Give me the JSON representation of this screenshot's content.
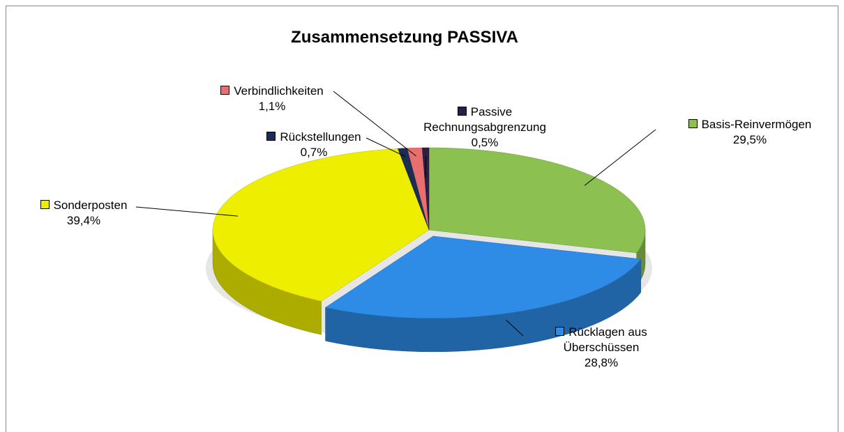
{
  "chart_data": {
    "type": "pie3d",
    "title": "Zusammensetzung PASSIVA",
    "categories": [
      "Basis-Reinvermögen",
      "Rücklagen aus Überschüssen",
      "Sonderposten",
      "Rückstellungen",
      "Verbindlichkeiten",
      "Passive Rechnungsabgrenzung"
    ],
    "values": [
      29.5,
      28.8,
      39.4,
      0.7,
      1.1,
      0.5
    ],
    "value_labels": [
      "29,5%",
      "28,8%",
      "39,4%",
      "0,7%",
      "1,1%",
      "0,5%"
    ],
    "colors": [
      "#8cc152",
      "#2e8be6",
      "#eeee00",
      "#1b2d52",
      "#e86f6f",
      "#2b1f45"
    ]
  }
}
